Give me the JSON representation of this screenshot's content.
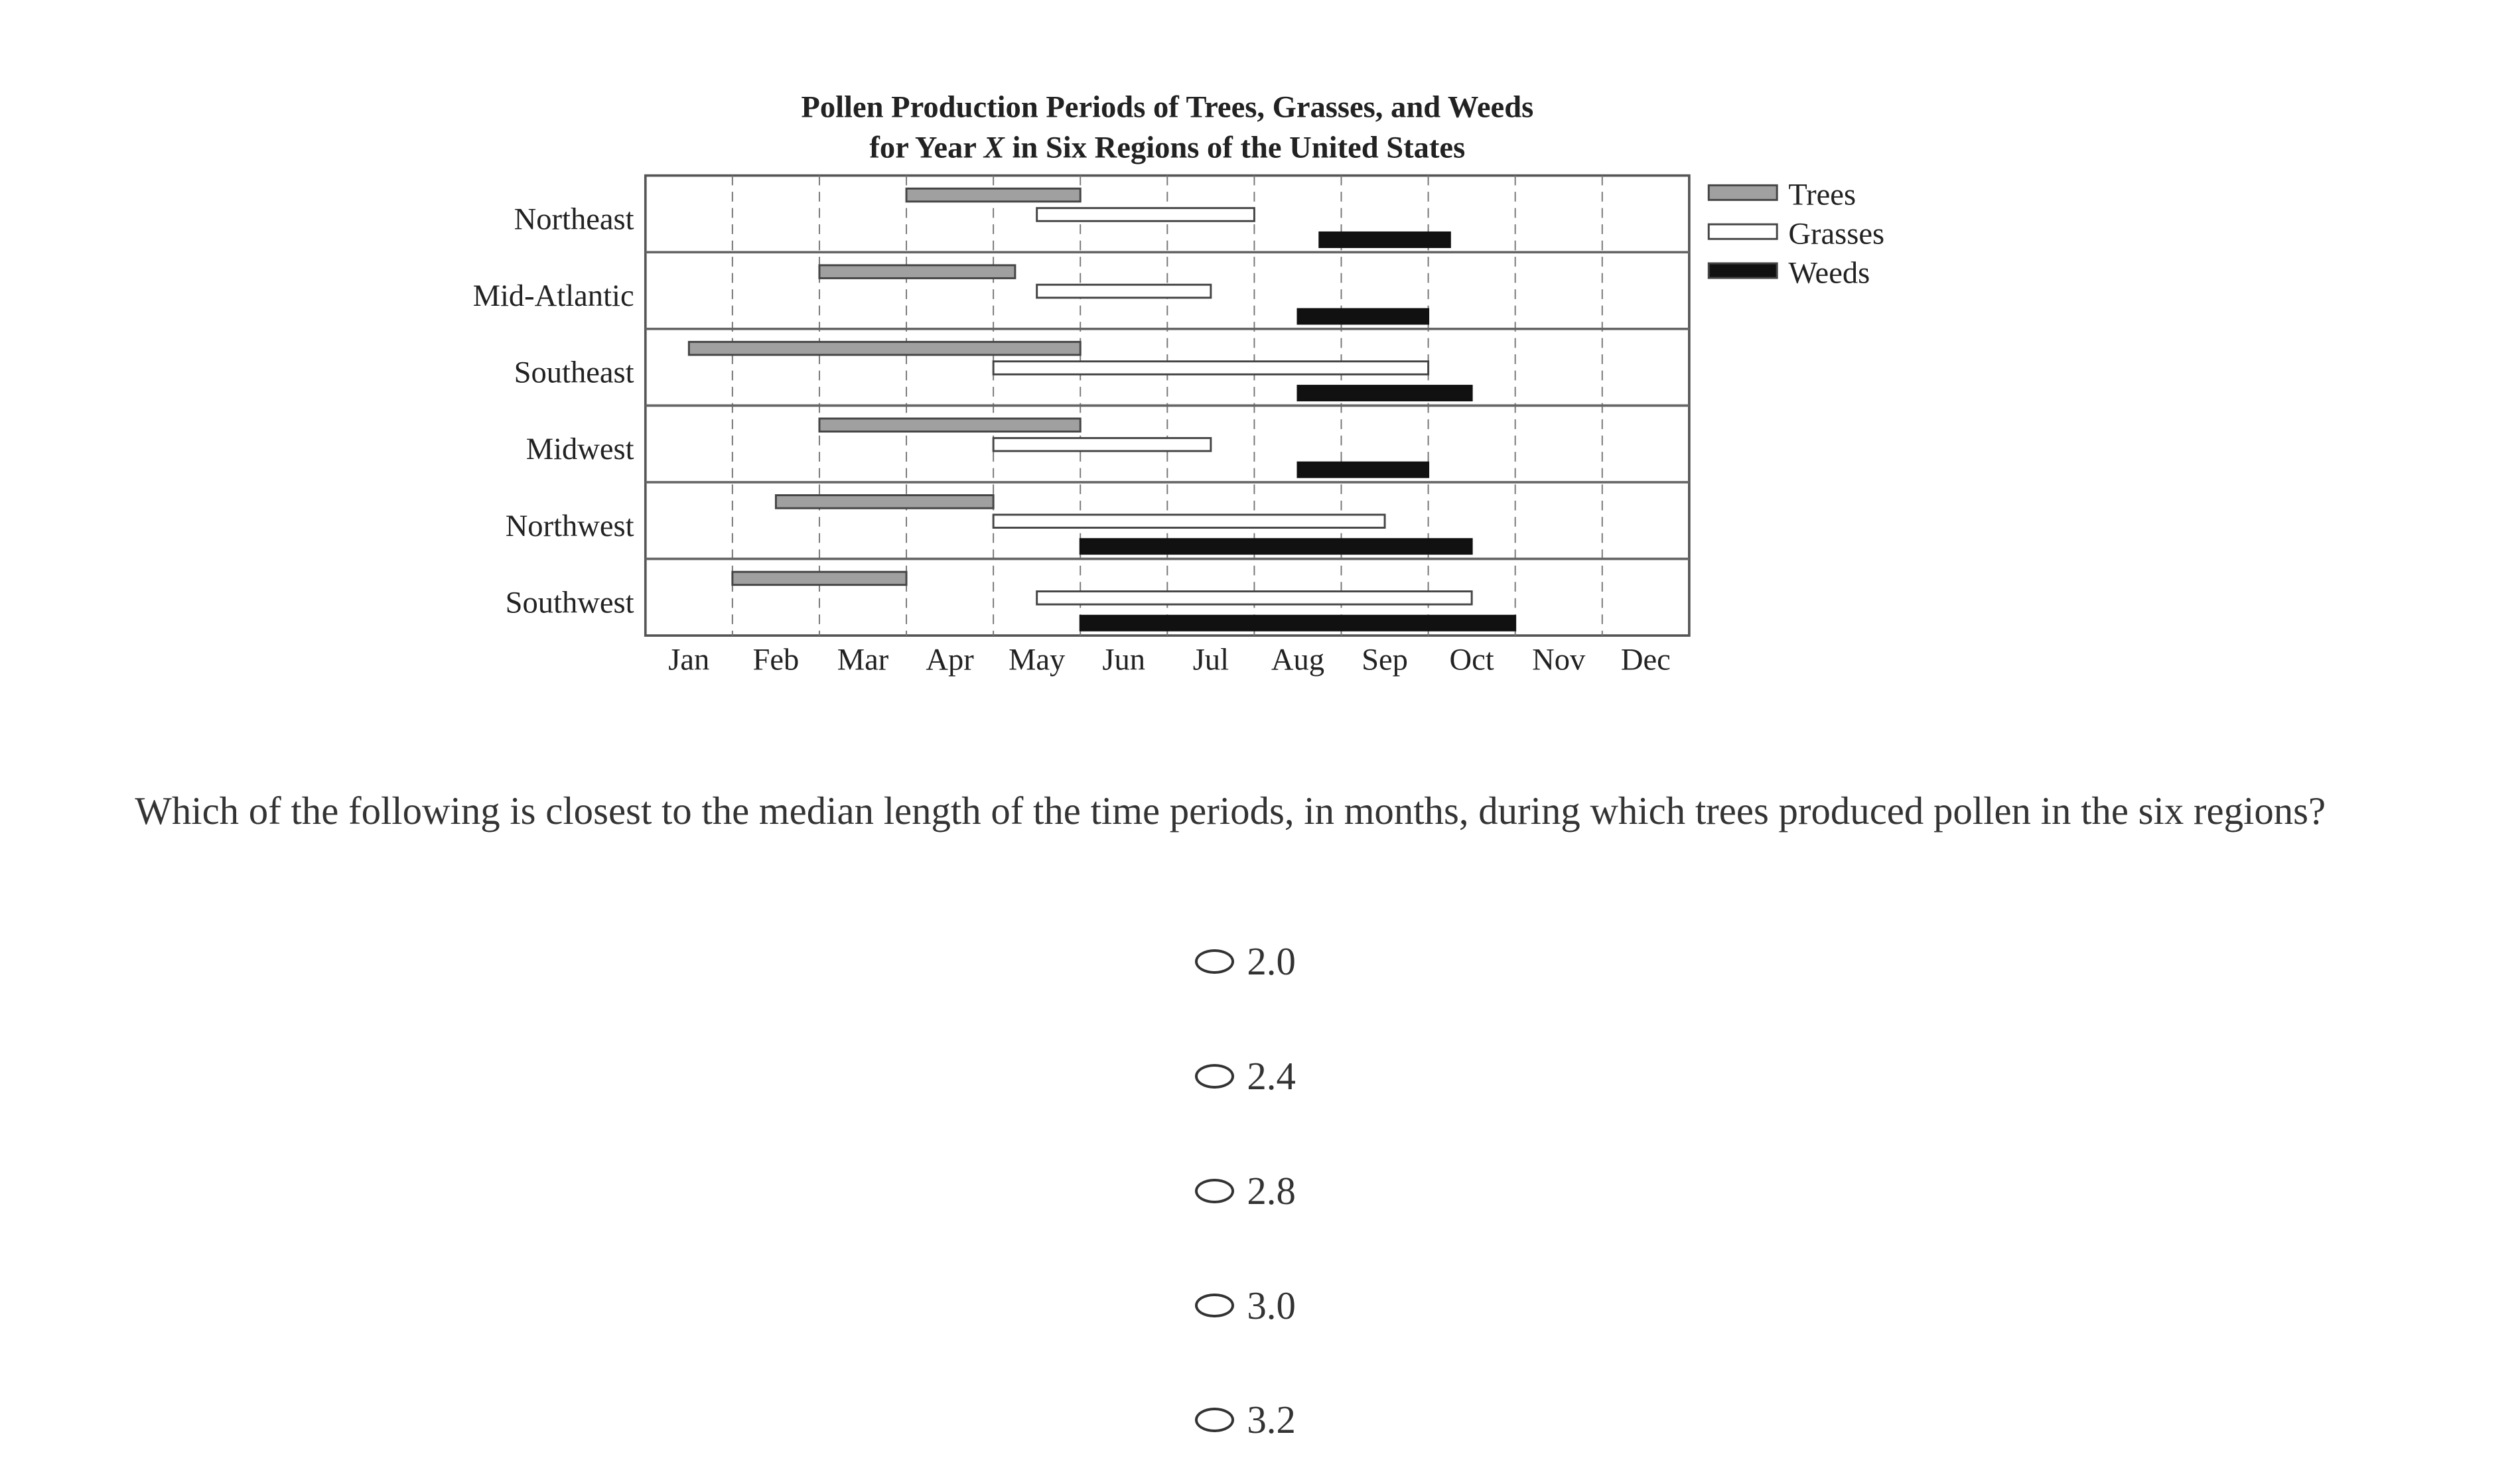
{
  "chart_data": {
    "type": "bar",
    "orientation": "horizontal-gantt",
    "title_line1": "Pollen Production Periods of Trees, Grasses, and Weeds",
    "title_line2_prefix": "for Year ",
    "title_line2_var": "X",
    "title_line2_suffix": " in Six Regions of the United States",
    "months": [
      "Jan",
      "Feb",
      "Mar",
      "Apr",
      "May",
      "Jun",
      "Jul",
      "Aug",
      "Sep",
      "Oct",
      "Nov",
      "Dec"
    ],
    "xlim_months": [
      0,
      12
    ],
    "grid": "dashed vertical at month boundaries",
    "legend_placement": "right",
    "categories": [
      "Northeast",
      "Mid-Atlantic",
      "Southeast",
      "Midwest",
      "Northwest",
      "Southwest"
    ],
    "series": [
      {
        "name": "Trees",
        "color": "#a0a0a0",
        "periods": [
          [
            3,
            5
          ],
          [
            2,
            4.25
          ],
          [
            0.5,
            5
          ],
          [
            2,
            5
          ],
          [
            1.5,
            4
          ],
          [
            1,
            3
          ]
        ]
      },
      {
        "name": "Grasses",
        "color": "#ffffff",
        "periods": [
          [
            4.5,
            7
          ],
          [
            4.5,
            6.5
          ],
          [
            4,
            9
          ],
          [
            4,
            6.5
          ],
          [
            4,
            8.5
          ],
          [
            4.5,
            9.5
          ]
        ]
      },
      {
        "name": "Weeds",
        "color": "#111111",
        "periods": [
          [
            7.75,
            9.25
          ],
          [
            7.5,
            9
          ],
          [
            7.5,
            9.5
          ],
          [
            7.5,
            9
          ],
          [
            5,
            9.5
          ],
          [
            5,
            10
          ]
        ]
      }
    ]
  },
  "question": "Which of the following is closest to the median length of the time periods, in months, during which trees produced pollen in the six regions?",
  "options": [
    "2.0",
    "2.4",
    "2.8",
    "3.0",
    "3.2"
  ]
}
